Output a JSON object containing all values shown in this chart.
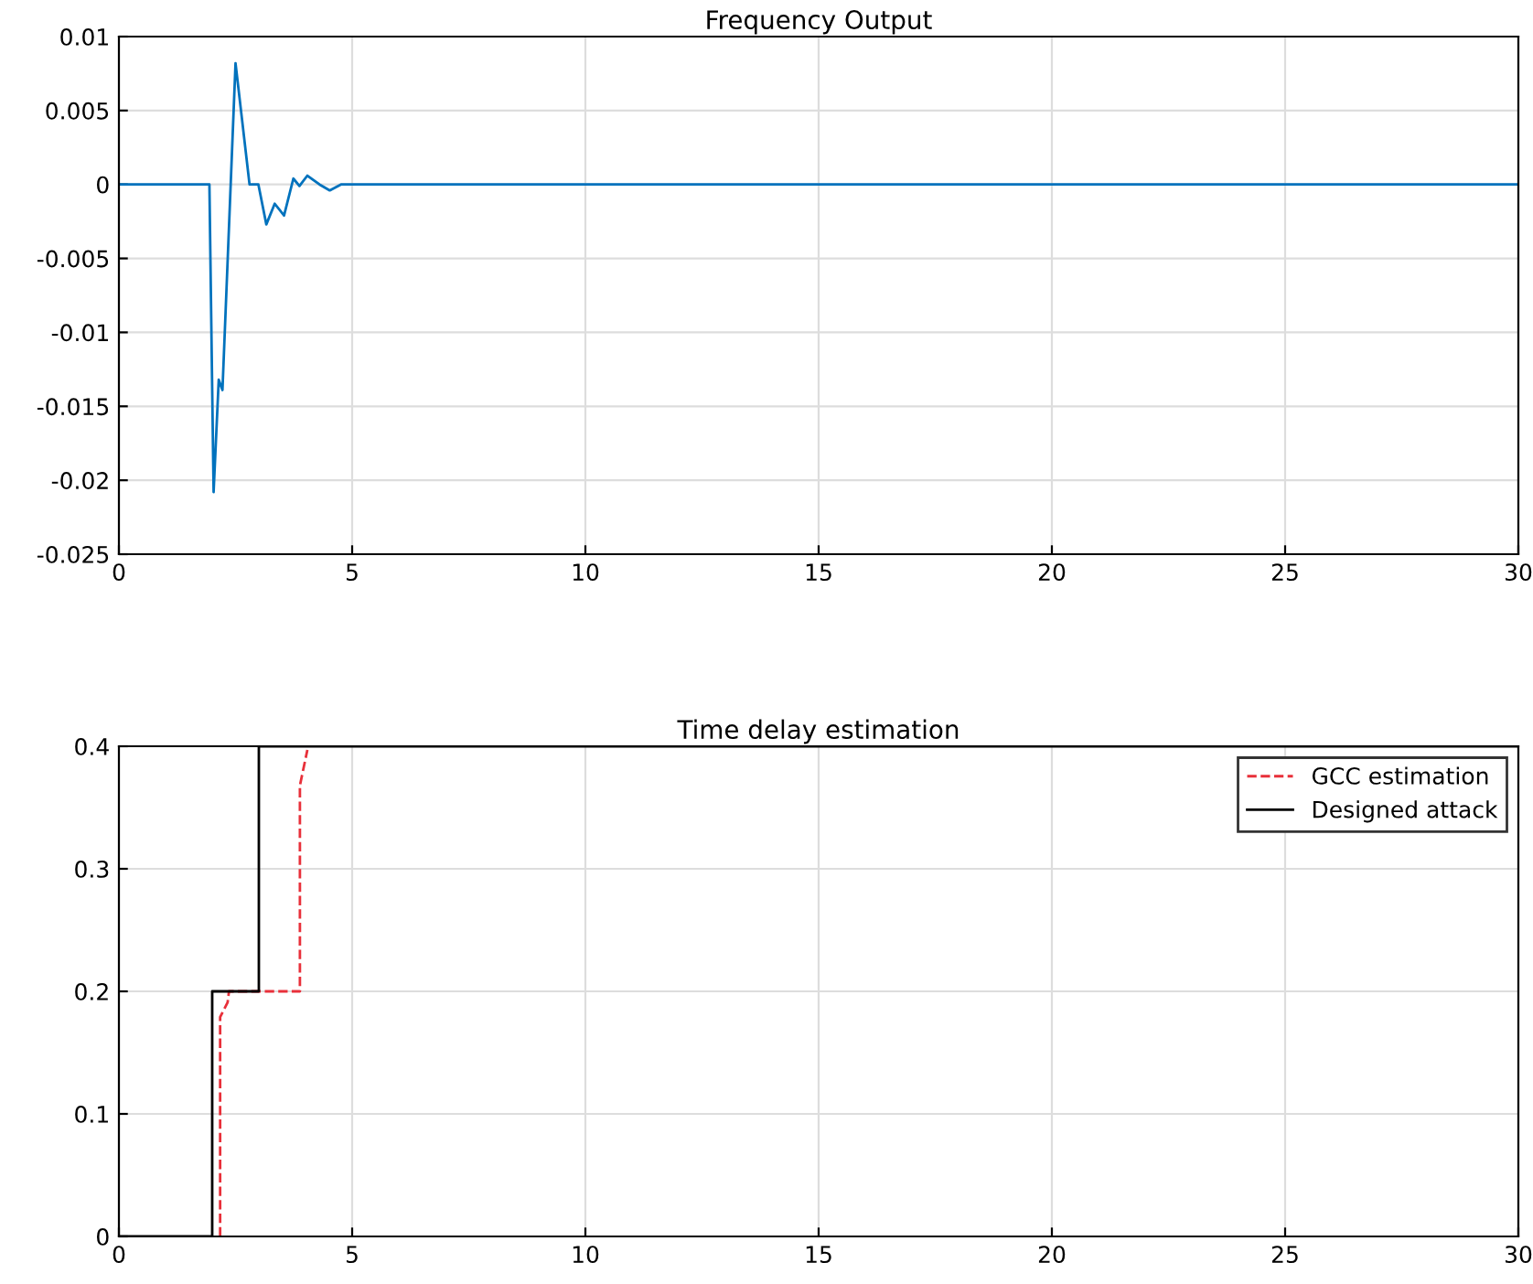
{
  "chart_data": [
    {
      "type": "line",
      "title": "Frequency Output",
      "xlim": [
        0,
        30
      ],
      "xticks": [
        0,
        5,
        10,
        15,
        20,
        25,
        30
      ],
      "ylim": [
        -0.025,
        0.01
      ],
      "yticks": [
        -0.025,
        -0.02,
        -0.015,
        -0.01,
        -0.005,
        0,
        0.005,
        0.01
      ],
      "grid": true,
      "series": [
        {
          "color": "#0072bd",
          "line_style": "solid",
          "x": [
            0,
            1.94,
            2.03,
            2.14,
            2.22,
            2.5,
            2.8,
            2.99,
            3.16,
            3.34,
            3.54,
            3.74,
            3.87,
            4.04,
            4.3,
            4.52,
            4.76,
            30
          ],
          "values": [
            0,
            0,
            -0.0208,
            -0.0132,
            -0.0139,
            0.0082,
            0,
            0,
            -0.0027,
            -0.0013,
            -0.0021,
            0.0004,
            -0.0001,
            0.0006,
            0,
            -0.0004,
            0,
            0
          ]
        }
      ]
    },
    {
      "type": "line",
      "title": "Time delay estimation",
      "xlim": [
        0,
        30
      ],
      "xticks": [
        0,
        5,
        10,
        15,
        20,
        25,
        30
      ],
      "ylim": [
        0,
        0.4
      ],
      "yticks": [
        0,
        0.1,
        0.2,
        0.3,
        0.4
      ],
      "grid": true,
      "legend": "top right",
      "series": [
        {
          "name": "GCC estimation",
          "color": "#e8303a",
          "line_style": "dashed",
          "x": [
            2.17,
            2.17,
            2.33,
            2.36,
            3.88,
            3.88,
            4.04
          ],
          "values": [
            0,
            0.179,
            0.191,
            0.2,
            0.2,
            0.368,
            0.397
          ]
        },
        {
          "name": "Designed attack",
          "color": "#000000",
          "line_style": "solid",
          "x": [
            0,
            2,
            2,
            3,
            3,
            30
          ],
          "values": [
            0,
            0,
            0.2,
            0.2,
            0.4,
            0.4
          ]
        }
      ]
    }
  ]
}
